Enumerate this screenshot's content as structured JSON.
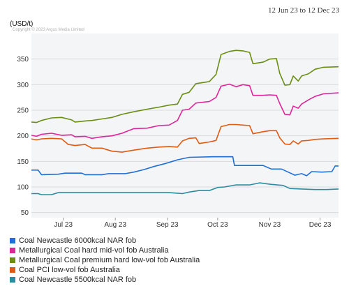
{
  "header": {
    "date_range": "12 Jun 23 to 12 Dec 23",
    "unit": "(USD/t)",
    "copyright": "Copyright © 2023 Argus Media Limited"
  },
  "chart_data": {
    "type": "line",
    "title": "",
    "xlabel": "",
    "ylabel": "(USD/t)",
    "ylim": [
      40,
      400
    ],
    "yticks": [
      50,
      100,
      150,
      200,
      250,
      300,
      350
    ],
    "x_tick_labels": [
      "Jul 23",
      "Aug 23",
      "Sep 23",
      "Oct 23",
      "Nov 23",
      "Dec 23"
    ],
    "x_tick_dates": [
      "2023-07-01",
      "2023-08-01",
      "2023-09-01",
      "2023-10-01",
      "2023-11-01",
      "2023-12-01"
    ],
    "x_range": [
      "2023-06-12",
      "2023-12-12"
    ],
    "grid": "horizontal",
    "legend_position": "bottom-left",
    "series": [
      {
        "name": "Coal Newcastle 6000kcal NAR fob",
        "color": "#1f6fd6",
        "points": [
          [
            "2023-06-12",
            133
          ],
          [
            "2023-06-16",
            133
          ],
          [
            "2023-06-18",
            124
          ],
          [
            "2023-06-28",
            125
          ],
          [
            "2023-07-02",
            127
          ],
          [
            "2023-07-12",
            127
          ],
          [
            "2023-07-14",
            124
          ],
          [
            "2023-07-24",
            124
          ],
          [
            "2023-07-28",
            126
          ],
          [
            "2023-08-07",
            126
          ],
          [
            "2023-08-12",
            129
          ],
          [
            "2023-08-18",
            134
          ],
          [
            "2023-08-24",
            140
          ],
          [
            "2023-08-31",
            146
          ],
          [
            "2023-09-07",
            153
          ],
          [
            "2023-09-14",
            158
          ],
          [
            "2023-09-28",
            159
          ],
          [
            "2023-10-05",
            159
          ],
          [
            "2023-10-10",
            159
          ],
          [
            "2023-10-11",
            142
          ],
          [
            "2023-10-20",
            142
          ],
          [
            "2023-10-28",
            142
          ],
          [
            "2023-11-02",
            135
          ],
          [
            "2023-11-08",
            135
          ],
          [
            "2023-11-12",
            129
          ],
          [
            "2023-11-16",
            123
          ],
          [
            "2023-11-20",
            126
          ],
          [
            "2023-11-23",
            122
          ],
          [
            "2023-11-26",
            130
          ],
          [
            "2023-12-02",
            129
          ],
          [
            "2023-12-08",
            130
          ],
          [
            "2023-12-10",
            141
          ],
          [
            "2023-12-12",
            141
          ]
        ]
      },
      {
        "name": "Metallurgical Coal hard mid-vol fob Australia",
        "color": "#e0249a",
        "points": [
          [
            "2023-06-12",
            201
          ],
          [
            "2023-06-15",
            199
          ],
          [
            "2023-06-18",
            203
          ],
          [
            "2023-06-24",
            205
          ],
          [
            "2023-06-30",
            201
          ],
          [
            "2023-07-06",
            202
          ],
          [
            "2023-07-08",
            198
          ],
          [
            "2023-07-14",
            199
          ],
          [
            "2023-07-18",
            195
          ],
          [
            "2023-07-24",
            198
          ],
          [
            "2023-07-30",
            200
          ],
          [
            "2023-08-05",
            205
          ],
          [
            "2023-08-12",
            214
          ],
          [
            "2023-08-20",
            215
          ],
          [
            "2023-08-27",
            220
          ],
          [
            "2023-09-02",
            221
          ],
          [
            "2023-09-07",
            230
          ],
          [
            "2023-09-10",
            250
          ],
          [
            "2023-09-14",
            252
          ],
          [
            "2023-09-18",
            264
          ],
          [
            "2023-09-26",
            267
          ],
          [
            "2023-09-30",
            275
          ],
          [
            "2023-10-03",
            297
          ],
          [
            "2023-10-08",
            301
          ],
          [
            "2023-10-12",
            296
          ],
          [
            "2023-10-16",
            300
          ],
          [
            "2023-10-20",
            298
          ],
          [
            "2023-10-22",
            279
          ],
          [
            "2023-10-28",
            279
          ],
          [
            "2023-11-01",
            280
          ],
          [
            "2023-11-05",
            279
          ],
          [
            "2023-11-07",
            263
          ],
          [
            "2023-11-10",
            242
          ],
          [
            "2023-11-13",
            241
          ],
          [
            "2023-11-15",
            258
          ],
          [
            "2023-11-18",
            254
          ],
          [
            "2023-11-20",
            262
          ],
          [
            "2023-11-24",
            270
          ],
          [
            "2023-11-28",
            277
          ],
          [
            "2023-12-03",
            282
          ],
          [
            "2023-12-12",
            284
          ]
        ]
      },
      {
        "name": "Metallurgical Coal premium hard low-vol fob Australia",
        "color": "#6b8e12",
        "points": [
          [
            "2023-06-12",
            227
          ],
          [
            "2023-06-15",
            226
          ],
          [
            "2023-06-18",
            230
          ],
          [
            "2023-06-24",
            235
          ],
          [
            "2023-06-30",
            236
          ],
          [
            "2023-07-06",
            231
          ],
          [
            "2023-07-08",
            227
          ],
          [
            "2023-07-14",
            229
          ],
          [
            "2023-07-18",
            230
          ],
          [
            "2023-07-24",
            233
          ],
          [
            "2023-07-30",
            236
          ],
          [
            "2023-08-05",
            242
          ],
          [
            "2023-08-12",
            247
          ],
          [
            "2023-08-20",
            252
          ],
          [
            "2023-08-27",
            256
          ],
          [
            "2023-09-02",
            260
          ],
          [
            "2023-09-07",
            262
          ],
          [
            "2023-09-10",
            281
          ],
          [
            "2023-09-14",
            285
          ],
          [
            "2023-09-18",
            302
          ],
          [
            "2023-09-26",
            306
          ],
          [
            "2023-09-30",
            320
          ],
          [
            "2023-10-03",
            359
          ],
          [
            "2023-10-08",
            365
          ],
          [
            "2023-10-12",
            367
          ],
          [
            "2023-10-16",
            366
          ],
          [
            "2023-10-20",
            363
          ],
          [
            "2023-10-22",
            341
          ],
          [
            "2023-10-28",
            344
          ],
          [
            "2023-11-01",
            350
          ],
          [
            "2023-11-05",
            351
          ],
          [
            "2023-11-07",
            322
          ],
          [
            "2023-11-10",
            299
          ],
          [
            "2023-11-13",
            300
          ],
          [
            "2023-11-15",
            317
          ],
          [
            "2023-11-18",
            307
          ],
          [
            "2023-11-20",
            317
          ],
          [
            "2023-11-24",
            321
          ],
          [
            "2023-11-28",
            330
          ],
          [
            "2023-12-03",
            334
          ],
          [
            "2023-12-12",
            335
          ]
        ]
      },
      {
        "name": "Coal PCI low-vol fob Australia",
        "color": "#e05a10",
        "points": [
          [
            "2023-06-12",
            194
          ],
          [
            "2023-06-15",
            192
          ],
          [
            "2023-06-18",
            194
          ],
          [
            "2023-06-24",
            195
          ],
          [
            "2023-06-30",
            194
          ],
          [
            "2023-07-04",
            183
          ],
          [
            "2023-07-08",
            181
          ],
          [
            "2023-07-14",
            183
          ],
          [
            "2023-07-18",
            176
          ],
          [
            "2023-07-24",
            176
          ],
          [
            "2023-07-30",
            170
          ],
          [
            "2023-08-05",
            168
          ],
          [
            "2023-08-12",
            172
          ],
          [
            "2023-08-20",
            176
          ],
          [
            "2023-08-27",
            178
          ],
          [
            "2023-09-02",
            179
          ],
          [
            "2023-09-07",
            178
          ],
          [
            "2023-09-10",
            190
          ],
          [
            "2023-09-14",
            195
          ],
          [
            "2023-09-18",
            196
          ],
          [
            "2023-09-20",
            185
          ],
          [
            "2023-09-26",
            188
          ],
          [
            "2023-09-30",
            191
          ],
          [
            "2023-10-03",
            218
          ],
          [
            "2023-10-08",
            222
          ],
          [
            "2023-10-12",
            222
          ],
          [
            "2023-10-16",
            221
          ],
          [
            "2023-10-20",
            220
          ],
          [
            "2023-10-22",
            204
          ],
          [
            "2023-10-28",
            208
          ],
          [
            "2023-11-01",
            210
          ],
          [
            "2023-11-05",
            210
          ],
          [
            "2023-11-07",
            196
          ],
          [
            "2023-11-10",
            184
          ],
          [
            "2023-11-13",
            183
          ],
          [
            "2023-11-15",
            190
          ],
          [
            "2023-11-18",
            184
          ],
          [
            "2023-11-20",
            190
          ],
          [
            "2023-11-24",
            191
          ],
          [
            "2023-11-28",
            193
          ],
          [
            "2023-12-03",
            194
          ],
          [
            "2023-12-12",
            195
          ]
        ]
      },
      {
        "name": "Coal Newcastle 5500kcal NAR fob",
        "color": "#2a8ca0",
        "points": [
          [
            "2023-06-12",
            87
          ],
          [
            "2023-06-16",
            87
          ],
          [
            "2023-06-18",
            85
          ],
          [
            "2023-06-24",
            85
          ],
          [
            "2023-06-28",
            89
          ],
          [
            "2023-07-20",
            89
          ],
          [
            "2023-08-05",
            89
          ],
          [
            "2023-08-20",
            89
          ],
          [
            "2023-09-02",
            89
          ],
          [
            "2023-09-10",
            87
          ],
          [
            "2023-09-14",
            90
          ],
          [
            "2023-09-20",
            93
          ],
          [
            "2023-09-26",
            93
          ],
          [
            "2023-10-01",
            99
          ],
          [
            "2023-10-05",
            100
          ],
          [
            "2023-10-12",
            104
          ],
          [
            "2023-10-20",
            104
          ],
          [
            "2023-10-26",
            108
          ],
          [
            "2023-11-02",
            105
          ],
          [
            "2023-11-09",
            103
          ],
          [
            "2023-11-13",
            97
          ],
          [
            "2023-11-20",
            96
          ],
          [
            "2023-11-28",
            95
          ],
          [
            "2023-12-05",
            95
          ],
          [
            "2023-12-12",
            96
          ]
        ]
      }
    ]
  },
  "legend_order": [
    0,
    1,
    2,
    3,
    4
  ]
}
